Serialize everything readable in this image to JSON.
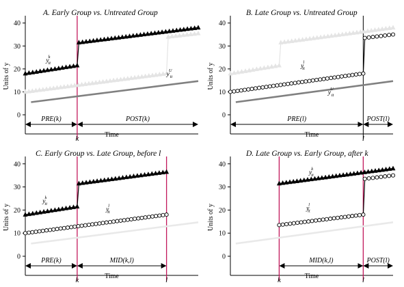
{
  "colors": {
    "early": "#000000",
    "late": "#000000",
    "untreated": "#808080",
    "faded_early": "#e4e4e4",
    "faded_untreated": "#e9e9e9",
    "treat_line": "#c2185b",
    "axis": "#000000"
  },
  "chart_data": [
    {
      "type": "line",
      "title": "A. Early Group vs. Untreated Group",
      "ylabel": "Units of y",
      "xlabel": "Time",
      "xlim": [
        0,
        30
      ],
      "ylim": [
        0,
        42
      ],
      "yticks": [
        0,
        10,
        20,
        30,
        40
      ],
      "grid": false,
      "vlines": [
        {
          "x": 9,
          "label": "k"
        }
      ],
      "periods": [
        {
          "x0": 0,
          "x1": 9,
          "label": "PRE(k)"
        },
        {
          "x0": 9,
          "x1": 30,
          "label": "POST(k)"
        }
      ],
      "series": [
        {
          "key": "early",
          "style": "triangles",
          "faded": false,
          "points": [
            [
              0,
              18
            ],
            [
              9,
              21.5
            ],
            [
              9.3,
              31.5
            ],
            [
              30,
              38
            ]
          ],
          "label": {
            "x": 3.6,
            "y": 23,
            "base": "y",
            "sup": "k",
            "sub": "it"
          }
        },
        {
          "key": "late",
          "style": "triangles",
          "faded": true,
          "points": [
            [
              0,
              10
            ],
            [
              24.5,
              18
            ],
            [
              24.8,
              34
            ],
            [
              30,
              35.5
            ]
          ]
        },
        {
          "key": "untreated",
          "style": "line",
          "faded": false,
          "points": [
            [
              1,
              5.5
            ],
            [
              30,
              14.7
            ]
          ],
          "label": {
            "x": 24.5,
            "y": 17,
            "base": "y",
            "sup": "U",
            "sub": "it"
          }
        }
      ]
    },
    {
      "type": "line",
      "title": "B. Late Group vs. Untreated Group",
      "ylabel": "Units of y",
      "xlabel": "Time",
      "xlim": [
        0,
        30
      ],
      "ylim": [
        0,
        42
      ],
      "yticks": [
        0,
        10,
        20,
        30,
        40
      ],
      "grid": false,
      "vlines": [
        {
          "x": 24.5,
          "label": "l",
          "nocolor": true
        }
      ],
      "periods": [
        {
          "x0": 0,
          "x1": 24.5,
          "label": "PRE(l)"
        },
        {
          "x0": 24.5,
          "x1": 30,
          "label": "POST(l)"
        }
      ],
      "series": [
        {
          "key": "early",
          "style": "triangles",
          "faded": true,
          "points": [
            [
              0,
              18
            ],
            [
              9,
              21.5
            ],
            [
              9.3,
              31.5
            ],
            [
              30,
              38
            ]
          ]
        },
        {
          "key": "late",
          "style": "circles",
          "faded": false,
          "points": [
            [
              0,
              10
            ],
            [
              24.5,
              18
            ],
            [
              24.8,
              33.5
            ],
            [
              30,
              35
            ]
          ],
          "label": {
            "x": 13,
            "y": 20.5,
            "base": "y",
            "sup": "l",
            "sub": "it"
          }
        },
        {
          "key": "untreated",
          "style": "line",
          "faded": false,
          "points": [
            [
              1,
              5.5
            ],
            [
              30,
              14.7
            ]
          ],
          "label": {
            "x": 18,
            "y": 9,
            "base": "y",
            "sup": "U",
            "sub": "it"
          }
        }
      ]
    },
    {
      "type": "line",
      "title": "C. Early Group vs. Late Group, before l",
      "ylabel": "Units of y",
      "xlabel": "Time",
      "xlim": [
        0,
        30
      ],
      "ylim": [
        0,
        42
      ],
      "yticks": [
        0,
        10,
        20,
        30,
        40
      ],
      "grid": false,
      "vlines": [
        {
          "x": 9,
          "label": "k"
        },
        {
          "x": 24.5,
          "label": "l"
        }
      ],
      "periods": [
        {
          "x0": 0,
          "x1": 9,
          "label": "PRE(k)"
        },
        {
          "x0": 9,
          "x1": 24.5,
          "label": "MID(k,l)"
        }
      ],
      "series": [
        {
          "key": "early",
          "style": "triangles",
          "faded": false,
          "points": [
            [
              0,
              18
            ],
            [
              9,
              21.5
            ],
            [
              9.3,
              31.5
            ],
            [
              24.5,
              36.5
            ]
          ],
          "label": {
            "x": 3,
            "y": 23,
            "base": "y",
            "sup": "k",
            "sub": "it"
          }
        },
        {
          "key": "late",
          "style": "circles",
          "faded": false,
          "points": [
            [
              0,
              10
            ],
            [
              24.5,
              18
            ]
          ],
          "label": {
            "x": 14,
            "y": 19.5,
            "base": "y",
            "sup": "l",
            "sub": "it"
          }
        },
        {
          "key": "untreated",
          "style": "line",
          "faded": true,
          "points": [
            [
              1,
              5.5
            ],
            [
              30,
              14.7
            ]
          ]
        }
      ]
    },
    {
      "type": "line",
      "title": "D. Late Group vs. Early Group, after k",
      "ylabel": "Units of y",
      "xlabel": "Time",
      "xlim": [
        0,
        30
      ],
      "ylim": [
        0,
        42
      ],
      "yticks": [
        0,
        10,
        20,
        30,
        40
      ],
      "grid": false,
      "vlines": [
        {
          "x": 9,
          "label": "k"
        },
        {
          "x": 24.5,
          "label": "l"
        }
      ],
      "periods": [
        {
          "x0": 9,
          "x1": 24.5,
          "label": "MID(k,l)"
        },
        {
          "x0": 24.5,
          "x1": 30,
          "label": "POST(l)"
        }
      ],
      "series": [
        {
          "key": "early",
          "style": "triangles",
          "faded": false,
          "points": [
            [
              9,
              31.5
            ],
            [
              30,
              38
            ]
          ],
          "label": {
            "x": 14.5,
            "y": 35.5,
            "base": "y",
            "sup": "k",
            "sub": "it"
          }
        },
        {
          "key": "late",
          "style": "circles",
          "faded": false,
          "points": [
            [
              9,
              13.5
            ],
            [
              24.5,
              18
            ],
            [
              24.8,
              33.5
            ],
            [
              30,
              35
            ]
          ],
          "label": {
            "x": 14,
            "y": 20,
            "base": "y",
            "sup": "l",
            "sub": "it"
          }
        },
        {
          "key": "untreated",
          "style": "line",
          "faded": true,
          "points": [
            [
              1,
              5.5
            ],
            [
              30,
              14.7
            ]
          ]
        }
      ]
    }
  ]
}
